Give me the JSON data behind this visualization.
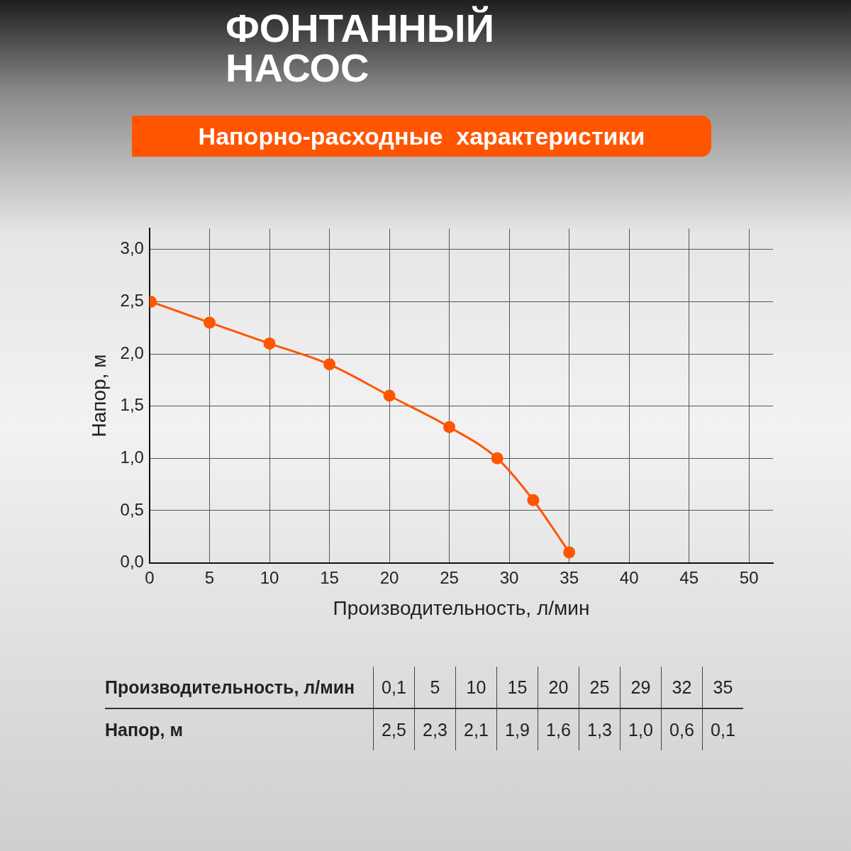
{
  "chart_data": {
    "type": "line",
    "title": "ФОНТАННЫЙ НАСОС",
    "subtitle": "Напорно-расходные  характеристики",
    "xlabel": "Производительность, л/мин",
    "ylabel": "Напор, м",
    "x": [
      0.1,
      5,
      10,
      15,
      20,
      25,
      29,
      32,
      35
    ],
    "series": [
      {
        "color": "#ff5500",
        "values": [
          2.5,
          2.3,
          2.1,
          1.9,
          1.6,
          1.3,
          1.0,
          0.6,
          0.1
        ]
      }
    ],
    "annotations": [
      "0,1",
      "5",
      "10",
      "15",
      "20",
      "25",
      "29",
      "32",
      "35",
      "2,5",
      "2,3",
      "2,1",
      "1,9",
      "1,6",
      "1,3",
      "1,0",
      "0,6",
      "0,1"
    ],
    "xlim": [
      0,
      52
    ],
    "xticks": [
      0,
      5,
      10,
      15,
      20,
      25,
      30,
      35,
      40,
      45,
      50
    ],
    "ylim": [
      0,
      3.2
    ],
    "yticks": [
      {
        "value": 0,
        "label": "0,0"
      },
      {
        "value": 0.5,
        "label": "0,5"
      },
      {
        "value": 1,
        "label": "1,0"
      },
      {
        "value": 1.5,
        "label": "1,5"
      },
      {
        "value": 2,
        "label": "2,0"
      },
      {
        "value": 2.5,
        "label": "2,5"
      },
      {
        "value": 3,
        "label": "3,0"
      }
    ],
    "grid": true,
    "legend": false,
    "marker": "circle",
    "line_style": "solid"
  }
}
